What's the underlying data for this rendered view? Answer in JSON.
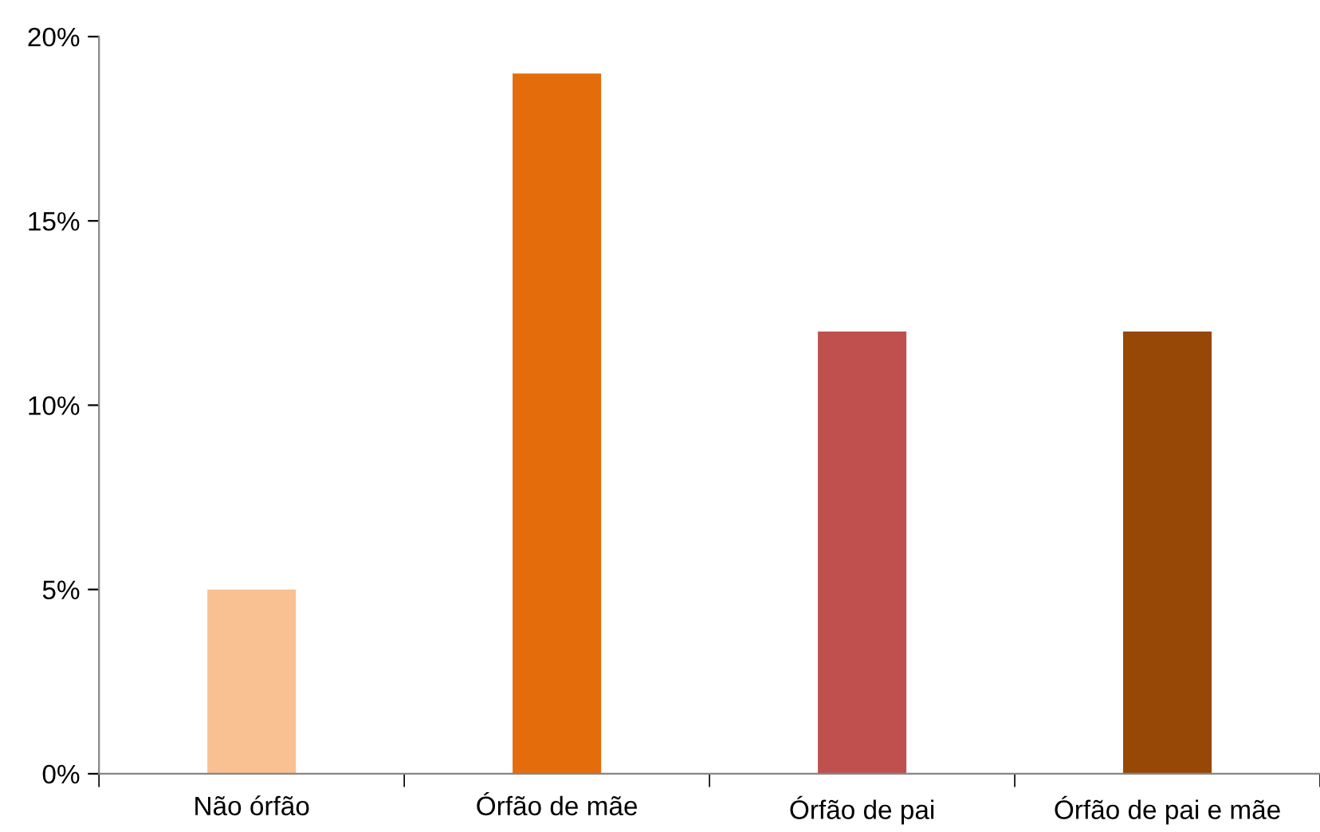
{
  "chart_data": {
    "type": "bar",
    "categories": [
      "Não órfão",
      "Órfão de mãe",
      "Órfão de pai",
      "Órfão de pai e mãe"
    ],
    "values": [
      5,
      19,
      12,
      12
    ],
    "colors": [
      "#f9c092",
      "#e46c0a",
      "#c0504d",
      "#974706"
    ],
    "ylim": [
      0,
      20
    ],
    "yticks": [
      {
        "value": 0,
        "label": "0%"
      },
      {
        "value": 5,
        "label": "5%"
      },
      {
        "value": 10,
        "label": "10%"
      },
      {
        "value": 15,
        "label": "15%"
      },
      {
        "value": 20,
        "label": "20%"
      }
    ],
    "grid": false,
    "legend": false
  }
}
